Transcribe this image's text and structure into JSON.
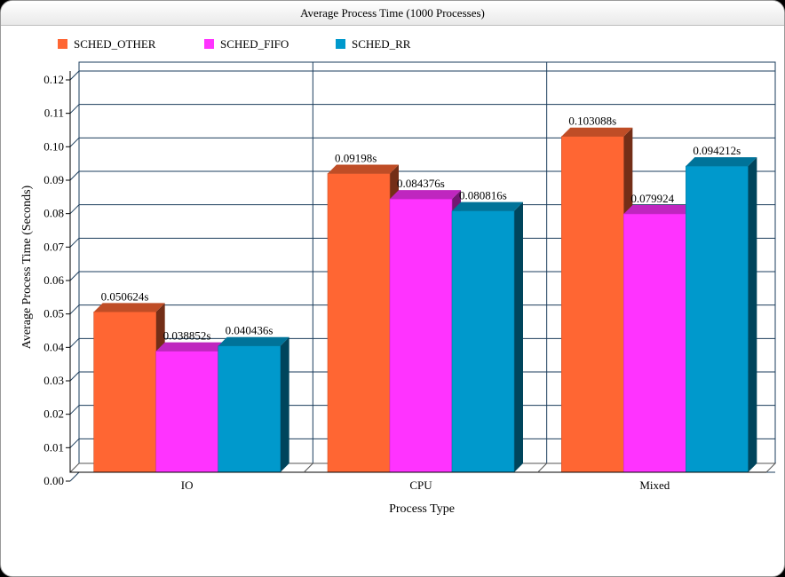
{
  "chart_data": {
    "type": "bar",
    "title": "Average Process Time (1000 Processes)",
    "xlabel": "Process Type",
    "ylabel": "Average Process Time (Seconds)",
    "categories": [
      "IO",
      "CPU",
      "Mixed"
    ],
    "series": [
      {
        "name": "SCHED_OTHER",
        "color": "#ff6633",
        "values": [
          0.050624,
          0.09198,
          0.103088
        ],
        "labels": [
          "0.050624s",
          "0.09198s",
          "0.103088s"
        ]
      },
      {
        "name": "SCHED_FIFO",
        "color": "#ff33ff",
        "values": [
          0.038852,
          0.084376,
          0.079924
        ],
        "labels": [
          "0.038852s",
          "0.084376s",
          "0.079924"
        ]
      },
      {
        "name": "SCHED_RR",
        "color": "#0099cc",
        "values": [
          0.040436,
          0.080816,
          0.094212
        ],
        "labels": [
          "0.040436s",
          "0.080816s",
          "0.094212s"
        ]
      }
    ],
    "ylim": [
      0,
      0.12
    ],
    "yticks": [
      "0.00",
      "0.01",
      "0.02",
      "0.03",
      "0.04",
      "0.05",
      "0.06",
      "0.07",
      "0.08",
      "0.09",
      "0.10",
      "0.11",
      "0.12"
    ],
    "grid": true,
    "legend_position": "top-left"
  }
}
